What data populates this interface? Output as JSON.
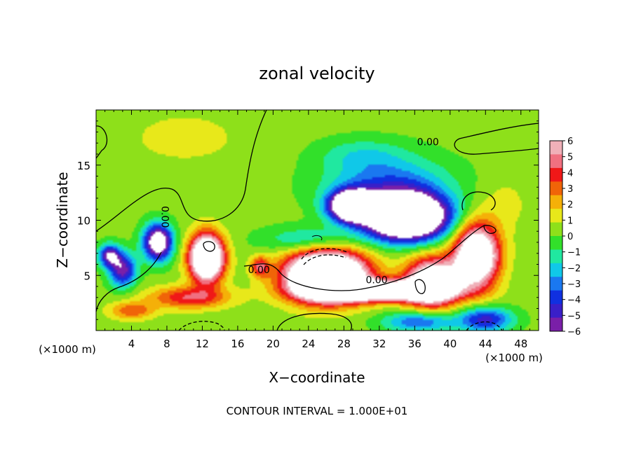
{
  "chart_data": {
    "type": "heatmap",
    "title": "zonal velocity",
    "xlabel": "X−coordinate",
    "ylabel": "Z−coordinate",
    "x_unit_left": "(×1000 m)",
    "x_unit_right": "(×1000 m)",
    "footer": "CONTOUR INTERVAL = 1.000E+01",
    "xlim": [
      0,
      50
    ],
    "ylim": [
      0,
      20
    ],
    "x_ticks": [
      4,
      8,
      12,
      16,
      20,
      24,
      28,
      32,
      36,
      40,
      44,
      48
    ],
    "y_ticks": [
      5,
      10,
      15
    ],
    "colorbar": {
      "range": [
        -6,
        6
      ],
      "ticks": [
        6,
        5,
        4,
        3,
        2,
        1,
        0,
        -1,
        -2,
        -3,
        -4,
        -5,
        -6
      ],
      "tick_labels": [
        "6",
        "5",
        "4",
        "3",
        "2",
        "1",
        "0",
        "−1",
        "−2",
        "−3",
        "−4",
        "−5",
        "−6"
      ],
      "colors": [
        "#7a1fa8",
        "#3a1fc8",
        "#1030e0",
        "#1a78f0",
        "#10c8e8",
        "#20e8a0",
        "#32e02a",
        "#8ee01a",
        "#e8e81a",
        "#f5b008",
        "#f06408",
        "#f01818",
        "#f07080",
        "#f0b0b8"
      ]
    },
    "contour_labels": [
      {
        "text": "0.00",
        "x": 37.5,
        "y": 16.8
      },
      {
        "text": "0.00",
        "x": 7.4,
        "y": 10.3
      },
      {
        "text": "0.00",
        "x": 18.4,
        "y": 5.2
      },
      {
        "text": "0.00",
        "x": 31.7,
        "y": 4.3
      }
    ],
    "field": {
      "background": 0.3,
      "features": [
        {
          "x": 7.0,
          "y": 8.0,
          "sx": 1.6,
          "sy": 1.6,
          "a": -9,
          "note": "white-left-negative"
        },
        {
          "x": 3.0,
          "y": 5.5,
          "sx": 1.5,
          "sy": 1.5,
          "a": -6
        },
        {
          "x": 1.5,
          "y": 6.8,
          "sx": 1.2,
          "sy": 1.0,
          "a": -6
        },
        {
          "x": 12.5,
          "y": 6.6,
          "sx": 1.9,
          "sy": 2.1,
          "a": 12
        },
        {
          "x": 10.5,
          "y": 3.0,
          "sx": 4.5,
          "sy": 1.0,
          "a": 4
        },
        {
          "x": 18.5,
          "y": 5.8,
          "sx": 1.0,
          "sy": 0.9,
          "a": 4
        },
        {
          "x": 4.0,
          "y": 1.8,
          "sx": 2.5,
          "sy": 0.8,
          "a": 3
        },
        {
          "x": 26.0,
          "y": 5.0,
          "sx": 4.5,
          "sy": 2.2,
          "a": 14
        },
        {
          "x": 32.0,
          "y": 3.6,
          "sx": 7.0,
          "sy": 0.9,
          "a": 10
        },
        {
          "x": 38.0,
          "y": 4.4,
          "sx": 3.0,
          "sy": 2.2,
          "a": 9
        },
        {
          "x": 43.0,
          "y": 6.8,
          "sx": 2.5,
          "sy": 2.8,
          "a": 10
        },
        {
          "x": 35.0,
          "y": 10.3,
          "sx": 4.5,
          "sy": 2.0,
          "a": -15
        },
        {
          "x": 29.0,
          "y": 11.3,
          "sx": 2.5,
          "sy": 1.3,
          "a": -13
        },
        {
          "x": 33.0,
          "y": 13.2,
          "sx": 7.0,
          "sy": 2.5,
          "a": -3.5
        },
        {
          "x": 24.0,
          "y": 8.2,
          "sx": 5.0,
          "sy": 1.2,
          "a": -2.5
        },
        {
          "x": 44.0,
          "y": 1.0,
          "sx": 3.0,
          "sy": 1.1,
          "a": -5
        },
        {
          "x": 36.5,
          "y": 0.8,
          "sx": 4.0,
          "sy": 0.9,
          "a": -4
        },
        {
          "x": 10.0,
          "y": 17.5,
          "sx": 8.0,
          "sy": 3.0,
          "a": 0.8
        },
        {
          "x": 46.0,
          "y": 11.5,
          "sx": 3.0,
          "sy": 2.5,
          "a": 0.9
        },
        {
          "x": 30.0,
          "y": 16.0,
          "sx": 5.0,
          "sy": 1.5,
          "a": -1.5
        }
      ]
    }
  }
}
